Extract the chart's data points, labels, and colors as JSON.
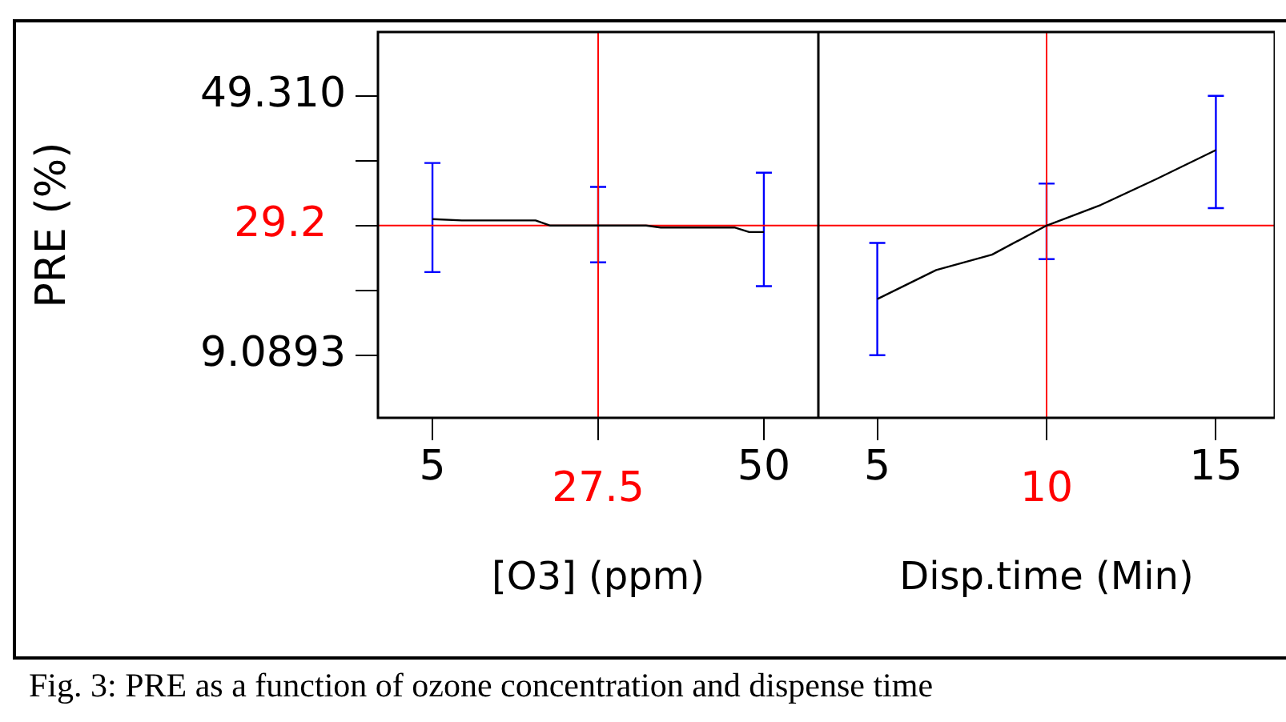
{
  "chart_data": [
    {
      "type": "line",
      "ylabel": "PRE (%)",
      "xlabel": "[O3] (ppm)",
      "xlim": [
        -2.4,
        57.4
      ],
      "xticks": [
        5,
        {
          "value": 27.5,
          "label": null
        },
        50
      ],
      "ylim": [
        -0.6,
        59.2
      ],
      "yticks": [
        {
          "value": 9.0893,
          "label": "9.0893"
        },
        {
          "value": 19.15,
          "label": null
        },
        {
          "value": 29.2,
          "label": null
        },
        {
          "value": 39.26,
          "label": null
        },
        {
          "value": 49.31,
          "label": "49.310"
        }
      ],
      "series": [
        {
          "type": "line",
          "color": "#000000",
          "x": [
            5,
            9,
            19,
            21,
            27.5,
            34,
            36,
            46,
            48,
            50
          ],
          "values": [
            30.2,
            30.0,
            30.0,
            29.2,
            29.2,
            29.2,
            28.9,
            28.9,
            28.2,
            28.2
          ],
          "errors": [
            [
              22.0,
              38.9
            ],
            null,
            null,
            null,
            [
              23.5,
              35.2
            ],
            null,
            null,
            null,
            null,
            [
              19.8,
              37.4
            ]
          ]
        }
      ],
      "ref_lines": [
        {
          "axis": "y",
          "value": 29.2,
          "label": "29.2",
          "color": "#ff0000"
        },
        {
          "axis": "x",
          "value": 27.5,
          "label": "27.5",
          "color": "#ff0000"
        }
      ],
      "annotations": [
        "Fig. 3: PRE as a function of ozone concentration and dispense time"
      ]
    },
    {
      "type": "line",
      "xlabel": "Disp.time (Min)",
      "xlim": [
        3.26,
        16.74
      ],
      "xticks": [
        5,
        {
          "value": 10,
          "label": null
        },
        15
      ],
      "ylim": [
        -0.6,
        59.2
      ],
      "tick_labels": "x",
      "series": [
        {
          "type": "line",
          "color": "#000000",
          "x": [
            5,
            6.74,
            8.39,
            10,
            11.6,
            13.24,
            15
          ],
          "values": [
            17.8,
            22.3,
            24.7,
            29.2,
            32.4,
            36.4,
            40.9
          ],
          "errors": [
            [
              9.1,
              26.5
            ],
            null,
            null,
            [
              24.0,
              35.7
            ],
            null,
            null,
            [
              31.9,
              49.3
            ]
          ]
        }
      ],
      "ref_lines": [
        {
          "axis": "y",
          "value": 29.2,
          "label": null,
          "color": "#ff0000"
        },
        {
          "axis": "x",
          "value": 10,
          "label": "10",
          "color": "#ff0000"
        }
      ]
    }
  ]
}
